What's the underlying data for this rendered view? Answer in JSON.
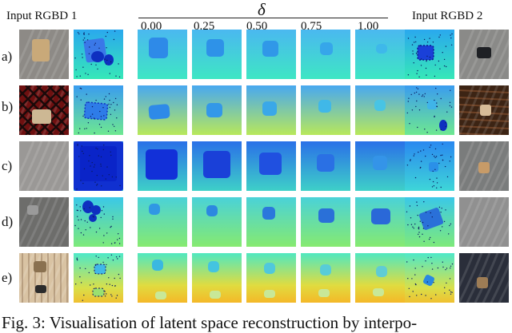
{
  "figure": {
    "header": {
      "input1": "Input RGBD 1",
      "input2": "Input RGBD 2",
      "delta_symbol": "δ",
      "deltas": [
        "0.00",
        "0.25",
        "0.50",
        "0.75",
        "1.00"
      ]
    },
    "rows": [
      {
        "label": "a)"
      },
      {
        "label": "b)"
      },
      {
        "label": "c)"
      },
      {
        "label": "d)"
      },
      {
        "label": "e)"
      }
    ],
    "caption": "Fig. 3: Visualisation of latent space reconstruction by interpo-"
  }
}
